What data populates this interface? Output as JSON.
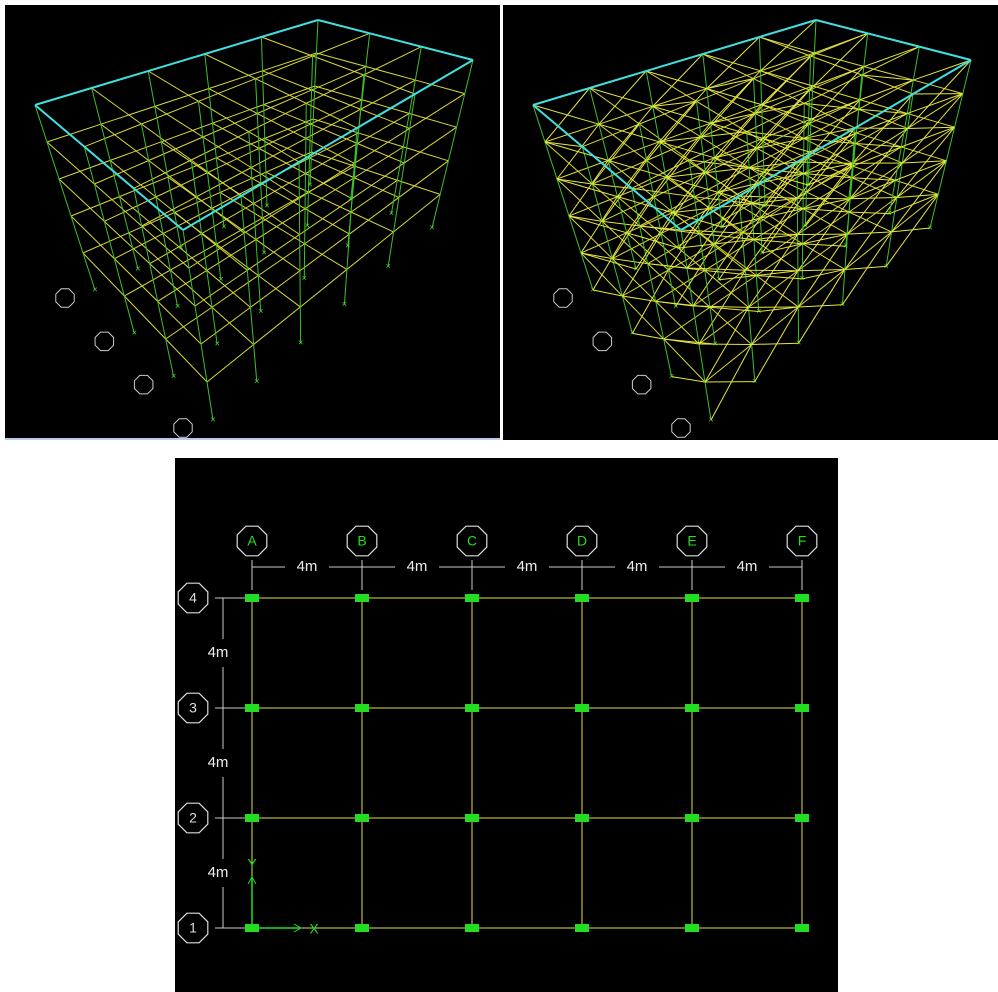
{
  "plan": {
    "columns": [
      "A",
      "B",
      "C",
      "D",
      "E",
      "F"
    ],
    "rows": [
      "4",
      "3",
      "2",
      "1"
    ],
    "x_spacings": [
      "4m",
      "4m",
      "4m",
      "4m",
      "4m"
    ],
    "y_spacings": [
      "4m",
      "4m",
      "4m"
    ],
    "axis_labels": {
      "x": "X",
      "y": "Y"
    }
  }
}
